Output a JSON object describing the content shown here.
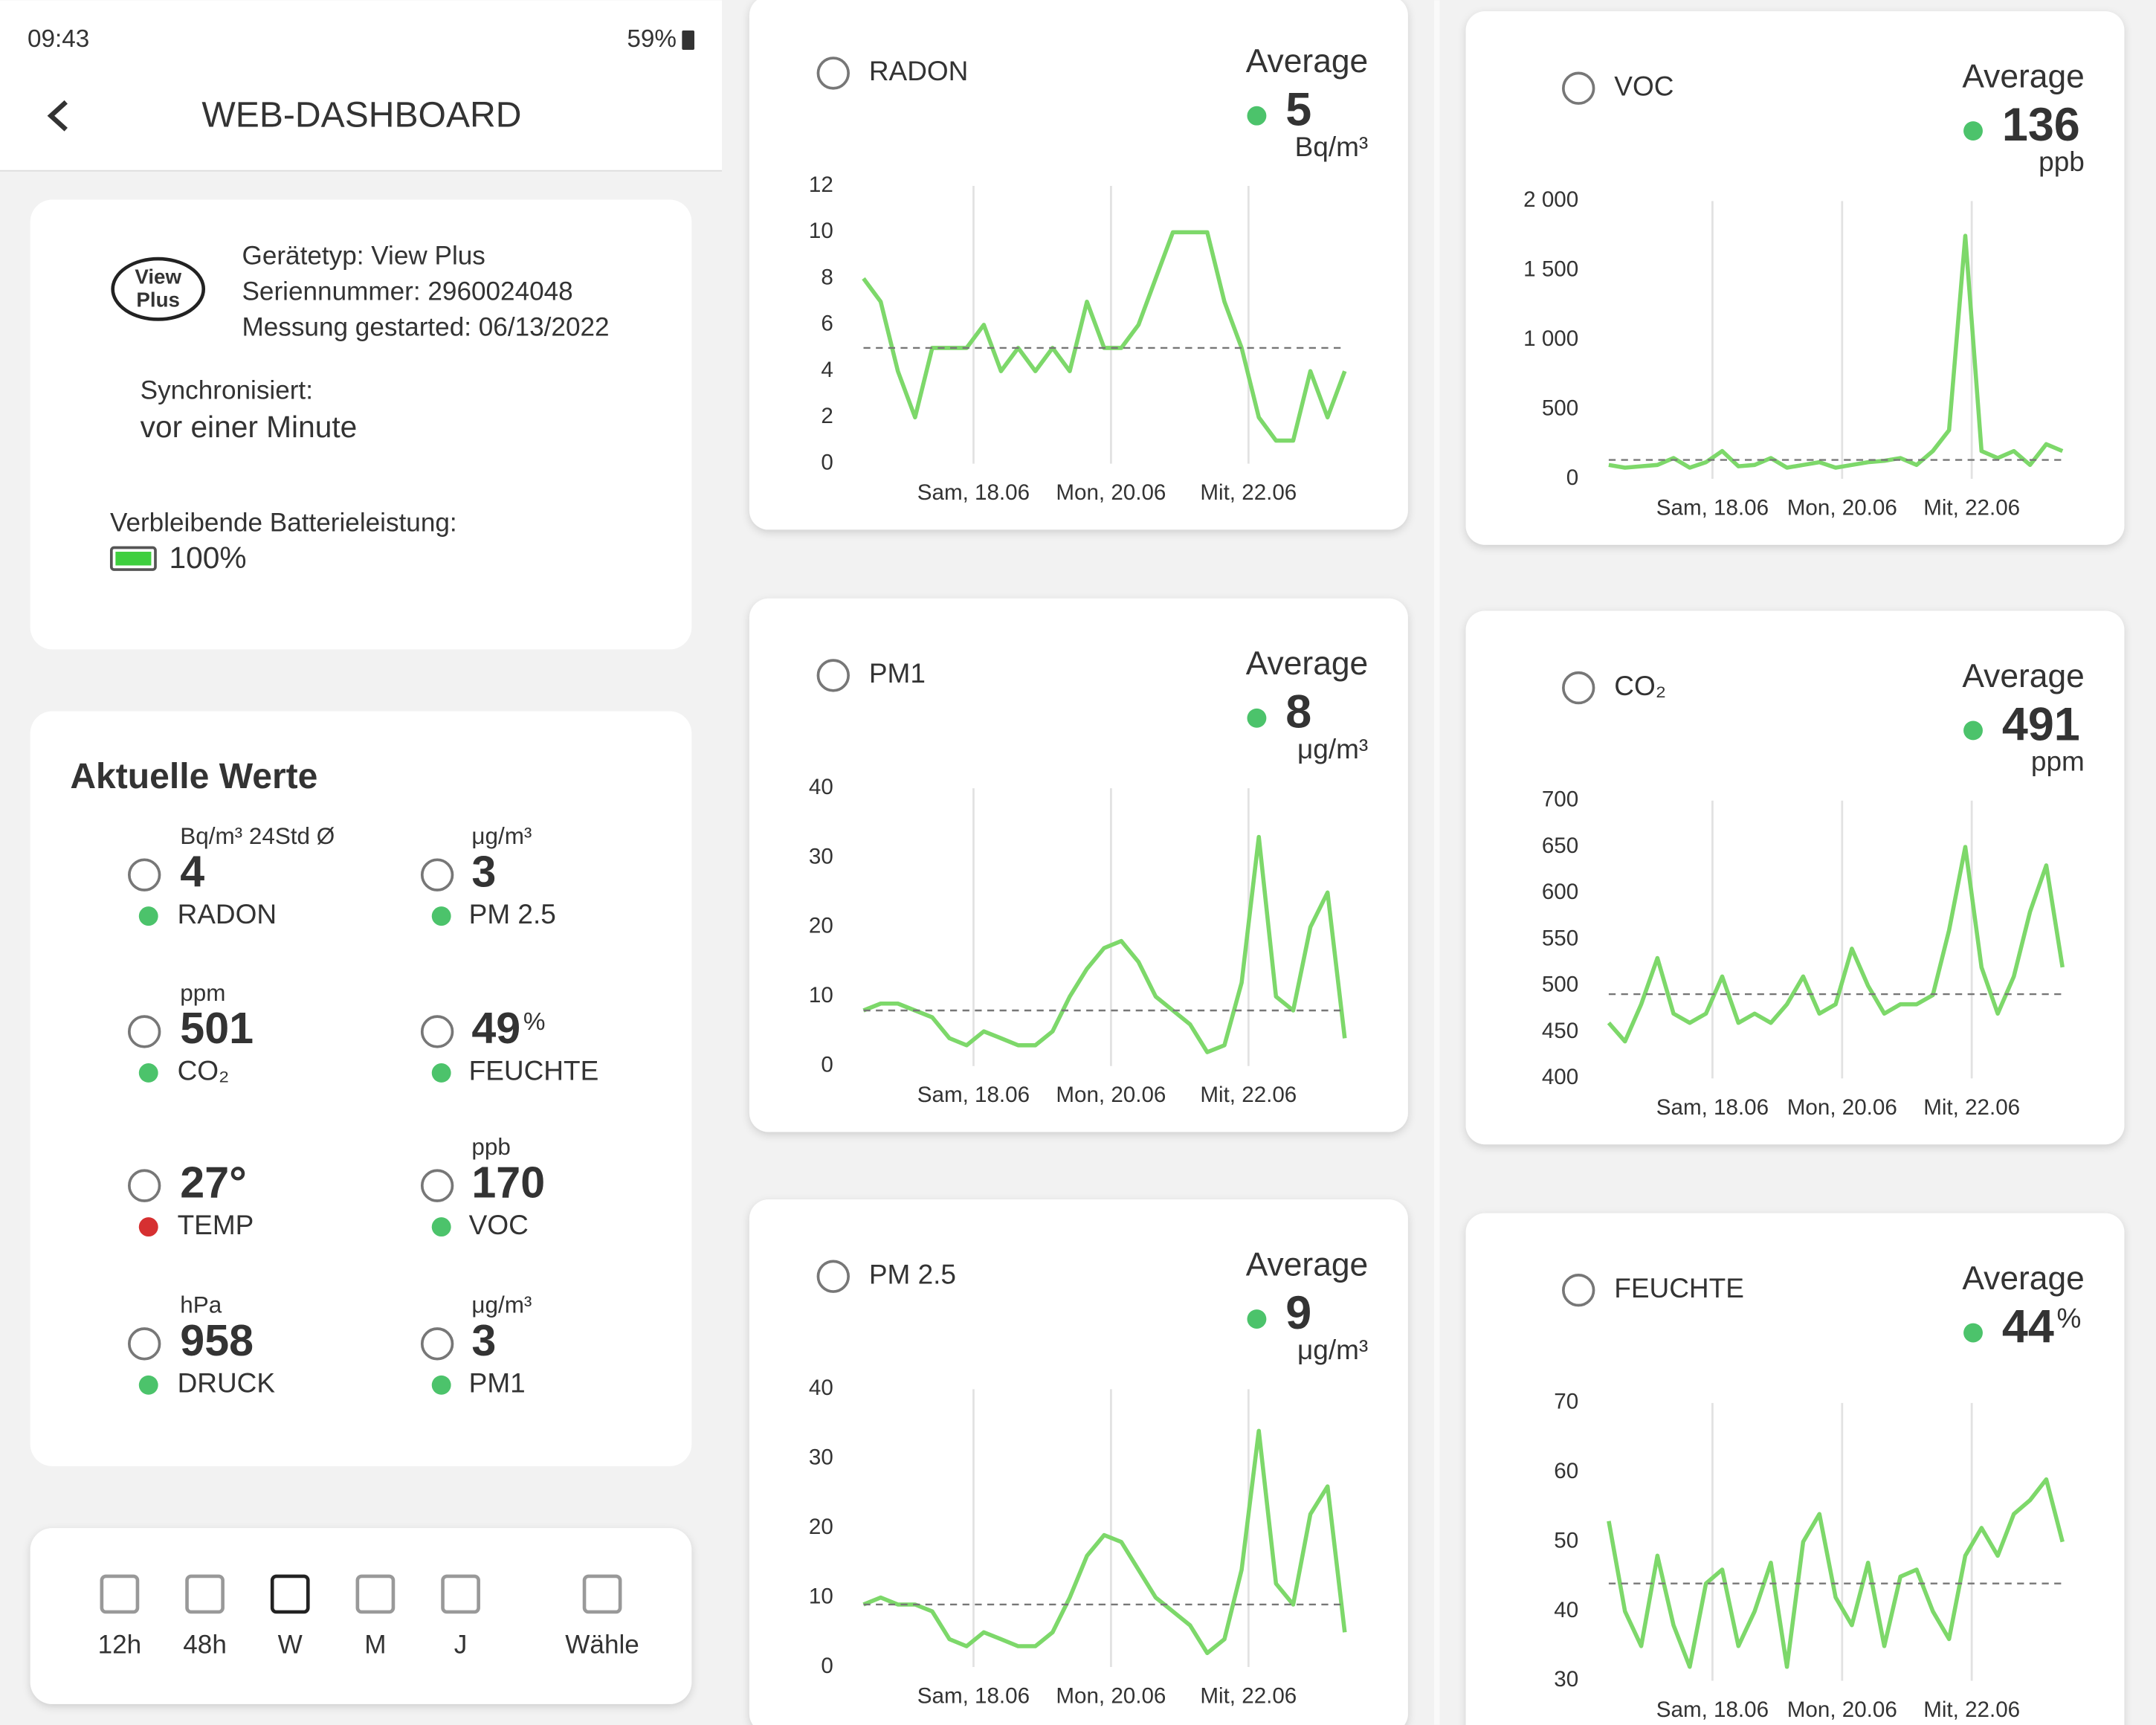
{
  "status_bar": {
    "time": "09:43",
    "battery": "59%"
  },
  "header": {
    "title": "WEB-DASHBOARD"
  },
  "device": {
    "logo_lines": [
      "View",
      "Plus"
    ],
    "fields": [
      "Gerätetyp: View Plus",
      "Seriennummer: 2960024048",
      "Messung gestarted: 06/13/2022"
    ],
    "sync_label": "Synchronisiert:",
    "sync_value": "vor einer Minute",
    "battery_label": "Verbleibende Batterieleistung:",
    "battery_value": "100%"
  },
  "current": {
    "title": "Aktuelle Werte",
    "items": [
      {
        "unit": "Bq/m³ 24Std Ø",
        "value": 4,
        "name": "RADON",
        "status_color": "#4cc36b"
      },
      {
        "unit": "μg/m³",
        "value": 3,
        "name": "PM 2.5",
        "status_color": "#4cc36b"
      },
      {
        "unit": "ppm",
        "value": 501,
        "name": "CO₂",
        "status_color": "#4cc36b"
      },
      {
        "unit": "%",
        "value": 49,
        "name": "FEUCHTE",
        "status_color": "#4cc36b",
        "unit_after": true
      },
      {
        "value": "27°",
        "name": "TEMP",
        "status_color": "#d63031"
      },
      {
        "unit": "ppb",
        "value": 170,
        "name": "VOC",
        "status_color": "#4cc36b"
      },
      {
        "unit": "hPa",
        "value": 958,
        "name": "DRUCK",
        "status_color": "#4cc36b"
      },
      {
        "unit": "μg/m³",
        "value": 3,
        "name": "PM1",
        "status_color": "#4cc36b"
      }
    ]
  },
  "time_range": {
    "options": [
      "12h",
      "48h",
      "W",
      "M",
      "J",
      "Wähle"
    ],
    "active": 2
  },
  "chart_data": [
    {
      "type": "line",
      "title": "RADON",
      "average_label": "Average",
      "average": 5,
      "unit": "Bq/m³",
      "status_color": "#4cc36b",
      "color": "#7dd86a",
      "x": [
        0,
        0.125,
        0.25,
        0.375,
        0.5,
        0.625,
        0.75,
        0.875,
        1,
        1.125,
        1.25,
        1.375,
        1.5,
        1.625,
        1.75,
        1.875,
        2,
        2.125,
        2.25,
        2.375,
        2.5,
        2.625,
        2.75,
        2.875,
        3,
        3.125,
        3.25,
        3.375,
        3.5
      ],
      "values": [
        8,
        7,
        4,
        2,
        5,
        5,
        5,
        6,
        4,
        5,
        4,
        5,
        4,
        7,
        5,
        5,
        6,
        8,
        10,
        10,
        10,
        7,
        5,
        2,
        1,
        1,
        4,
        2,
        4
      ],
      "xlim": [
        0,
        3.5
      ],
      "xticks": [
        {
          "value": 0.8,
          "label": "Sam, 18.06"
        },
        {
          "value": 1.8,
          "label": "Mon, 20.06"
        },
        {
          "value": 2.8,
          "label": "Mit, 22.06"
        }
      ],
      "ylim": [
        0,
        12
      ],
      "yticks": [
        0,
        2,
        4,
        6,
        8,
        10,
        12
      ]
    },
    {
      "type": "line",
      "title": "PM1",
      "average_label": "Average",
      "average": 8,
      "unit": "μg/m³",
      "status_color": "#4cc36b",
      "color": "#7dd86a",
      "x": [
        0,
        0.125,
        0.25,
        0.375,
        0.5,
        0.625,
        0.75,
        0.875,
        1,
        1.125,
        1.25,
        1.375,
        1.5,
        1.625,
        1.75,
        1.875,
        2,
        2.125,
        2.25,
        2.375,
        2.5,
        2.625,
        2.75,
        2.875,
        3,
        3.125,
        3.25,
        3.375,
        3.5
      ],
      "values": [
        8,
        9,
        9,
        8,
        7,
        4,
        3,
        5,
        4,
        3,
        3,
        5,
        10,
        14,
        17,
        18,
        15,
        10,
        8,
        6,
        2,
        3,
        12,
        33,
        10,
        8,
        20,
        25,
        4
      ],
      "xlim": [
        0,
        3.5
      ],
      "xticks": [
        {
          "value": 0.8,
          "label": "Sam, 18.06"
        },
        {
          "value": 1.8,
          "label": "Mon, 20.06"
        },
        {
          "value": 2.8,
          "label": "Mit, 22.06"
        }
      ],
      "ylim": [
        0,
        40
      ],
      "yticks": [
        0,
        10,
        20,
        30,
        40
      ]
    },
    {
      "type": "line",
      "title": "PM 2.5",
      "average_label": "Average",
      "average": 9,
      "unit": "μg/m³",
      "status_color": "#4cc36b",
      "color": "#7dd86a",
      "x": [
        0,
        0.125,
        0.25,
        0.375,
        0.5,
        0.625,
        0.75,
        0.875,
        1,
        1.125,
        1.25,
        1.375,
        1.5,
        1.625,
        1.75,
        1.875,
        2,
        2.125,
        2.25,
        2.375,
        2.5,
        2.625,
        2.75,
        2.875,
        3,
        3.125,
        3.25,
        3.375,
        3.5
      ],
      "values": [
        9,
        10,
        9,
        9,
        8,
        4,
        3,
        5,
        4,
        3,
        3,
        5,
        10,
        16,
        19,
        18,
        14,
        10,
        8,
        6,
        2,
        4,
        14,
        34,
        12,
        9,
        22,
        26,
        5
      ],
      "xlim": [
        0,
        3.5
      ],
      "xticks": [
        {
          "value": 0.8,
          "label": "Sam, 18.06"
        },
        {
          "value": 1.8,
          "label": "Mon, 20.06"
        },
        {
          "value": 2.8,
          "label": "Mit, 22.06"
        }
      ],
      "ylim": [
        0,
        40
      ],
      "yticks": [
        0,
        10,
        20,
        30,
        40
      ]
    },
    {
      "type": "line",
      "title": "VOC",
      "average_label": "Average",
      "average": 136,
      "unit": "ppb",
      "status_color": "#4cc36b",
      "color": "#7dd86a",
      "x": [
        0,
        0.125,
        0.25,
        0.375,
        0.5,
        0.625,
        0.75,
        0.875,
        1,
        1.125,
        1.25,
        1.375,
        1.5,
        1.625,
        1.75,
        1.875,
        2,
        2.125,
        2.25,
        2.375,
        2.5,
        2.625,
        2.75,
        2.875,
        3,
        3.125,
        3.25,
        3.375,
        3.5
      ],
      "values": [
        100,
        80,
        90,
        100,
        150,
        80,
        120,
        200,
        90,
        100,
        150,
        80,
        100,
        120,
        80,
        100,
        120,
        130,
        150,
        100,
        200,
        350,
        1750,
        200,
        150,
        200,
        100,
        250,
        200
      ],
      "xlim": [
        0,
        3.5
      ],
      "xticks": [
        {
          "value": 0.8,
          "label": "Sam, 18.06"
        },
        {
          "value": 1.8,
          "label": "Mon, 20.06"
        },
        {
          "value": 2.8,
          "label": "Mit, 22.06"
        }
      ],
      "ylim": [
        0,
        2000
      ],
      "yticks": [
        0,
        500,
        {
          "value": 1000,
          "label": "1 000"
        },
        {
          "value": 1500,
          "label": "1 500"
        },
        {
          "value": 2000,
          "label": "2 000"
        }
      ]
    },
    {
      "type": "line",
      "title": "CO₂",
      "average_label": "Average",
      "average": 491,
      "unit": "ppm",
      "status_color": "#4cc36b",
      "color": "#7dd86a",
      "x": [
        0,
        0.125,
        0.25,
        0.375,
        0.5,
        0.625,
        0.75,
        0.875,
        1,
        1.125,
        1.25,
        1.375,
        1.5,
        1.625,
        1.75,
        1.875,
        2,
        2.125,
        2.25,
        2.375,
        2.5,
        2.625,
        2.75,
        2.875,
        3,
        3.125,
        3.25,
        3.375,
        3.5
      ],
      "values": [
        460,
        440,
        480,
        530,
        470,
        460,
        470,
        510,
        460,
        470,
        460,
        480,
        510,
        470,
        480,
        540,
        500,
        470,
        480,
        480,
        490,
        560,
        650,
        520,
        470,
        510,
        580,
        630,
        520
      ],
      "xlim": [
        0,
        3.5
      ],
      "xticks": [
        {
          "value": 0.8,
          "label": "Sam, 18.06"
        },
        {
          "value": 1.8,
          "label": "Mon, 20.06"
        },
        {
          "value": 2.8,
          "label": "Mit, 22.06"
        }
      ],
      "ylim": [
        400,
        700
      ],
      "yticks": [
        400,
        450,
        500,
        550,
        600,
        650,
        700
      ]
    },
    {
      "type": "line",
      "title": "FEUCHTE",
      "average_label": "Average",
      "average": 44,
      "unit": "%",
      "unit_after": true,
      "status_color": "#4cc36b",
      "color": "#7dd86a",
      "x": [
        0,
        0.125,
        0.25,
        0.375,
        0.5,
        0.625,
        0.75,
        0.875,
        1,
        1.125,
        1.25,
        1.375,
        1.5,
        1.625,
        1.75,
        1.875,
        2,
        2.125,
        2.25,
        2.375,
        2.5,
        2.625,
        2.75,
        2.875,
        3,
        3.125,
        3.25,
        3.375,
        3.5
      ],
      "values": [
        53,
        40,
        35,
        48,
        38,
        32,
        44,
        46,
        35,
        40,
        47,
        32,
        50,
        54,
        42,
        38,
        47,
        35,
        45,
        46,
        40,
        36,
        48,
        52,
        48,
        54,
        56,
        59,
        50
      ],
      "xlim": [
        0,
        3.5
      ],
      "xticks": [
        {
          "value": 0.8,
          "label": "Sam, 18.06"
        },
        {
          "value": 1.8,
          "label": "Mon, 20.06"
        },
        {
          "value": 2.8,
          "label": "Mit, 22.06"
        }
      ],
      "ylim": [
        30,
        70
      ],
      "yticks": [
        30,
        40,
        50,
        60,
        70
      ]
    }
  ]
}
